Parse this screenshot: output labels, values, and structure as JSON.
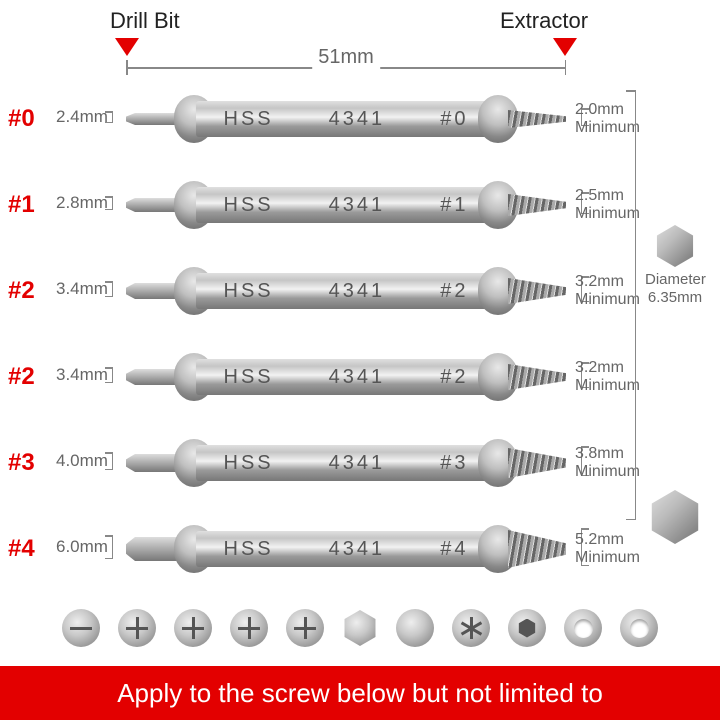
{
  "colors": {
    "accent": "#e30000",
    "text_dim": "#666666",
    "metal_light": "#e0e0e0",
    "metal_dark": "#777777"
  },
  "header": {
    "drill_label": "Drill Bit",
    "extractor_label": "Extractor",
    "overall_length": "51mm"
  },
  "hex": {
    "label": "Diameter 6.35mm"
  },
  "material_marking": {
    "mat": "HSS",
    "grade": "4341"
  },
  "bits": [
    {
      "id": "#0",
      "drill_dim": "2.4mm",
      "ext_dim": "2.0mm",
      "ext_note": "Minimum",
      "drill_h": 12,
      "ext_h": 18
    },
    {
      "id": "#1",
      "drill_dim": "2.8mm",
      "ext_dim": "2.5mm",
      "ext_note": "Minimum",
      "drill_h": 14,
      "ext_h": 22
    },
    {
      "id": "#2",
      "drill_dim": "3.4mm",
      "ext_dim": "3.2mm",
      "ext_note": "Minimum",
      "drill_h": 16,
      "ext_h": 26
    },
    {
      "id": "#2",
      "drill_dim": "3.4mm",
      "ext_dim": "3.2mm",
      "ext_note": "Minimum",
      "drill_h": 16,
      "ext_h": 26
    },
    {
      "id": "#3",
      "drill_dim": "4.0mm",
      "ext_dim": "3.8mm",
      "ext_note": "Minimum",
      "drill_h": 18,
      "ext_h": 30
    },
    {
      "id": "#4",
      "drill_dim": "6.0mm",
      "ext_dim": "5.2mm",
      "ext_note": "Minimum",
      "drill_h": 24,
      "ext_h": 38
    }
  ],
  "screw_types": [
    "slot",
    "pan-phillips",
    "phillips",
    "phillips",
    "combo",
    "hex",
    "pan",
    "torx",
    "socket",
    "ring",
    "ring"
  ],
  "footer_text": "Apply to the screw below but not limited to"
}
